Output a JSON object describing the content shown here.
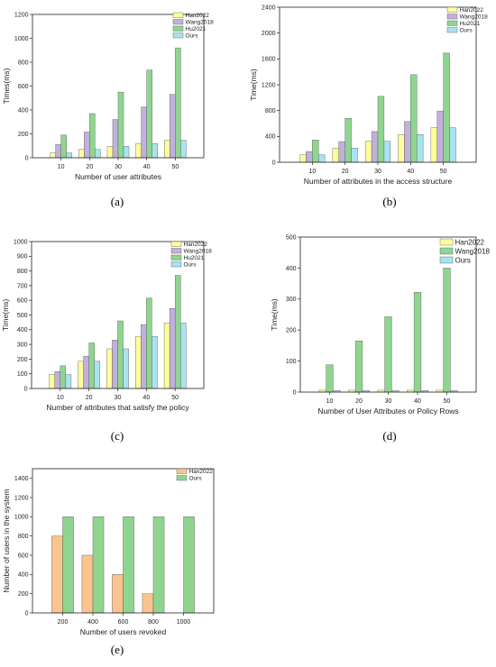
{
  "colors": {
    "han": "#ffff99",
    "wang": "#c2b0dc",
    "hu": "#8fd58f",
    "ours": "#a9e3ef",
    "e_han": "#fbc48f",
    "e_ours": "#8fd58f"
  },
  "chart_data": [
    {
      "id": "a",
      "caption": "(a)",
      "type": "bar",
      "ylabel": "Times(ms)",
      "xlabel": "Number of user attributes",
      "categories": [
        "10",
        "20",
        "30",
        "40",
        "50"
      ],
      "ylim": [
        0,
        1200
      ],
      "yticks": [
        0,
        200,
        400,
        600,
        800,
        1000,
        1200
      ],
      "legend": "top-right",
      "series": [
        {
          "name": "Han2022",
          "color_key": "han",
          "values": [
            40,
            70,
            95,
            120,
            145
          ]
        },
        {
          "name": "Wang2018",
          "color_key": "wang",
          "values": [
            110,
            215,
            320,
            425,
            530
          ]
        },
        {
          "name": "Hu2021",
          "color_key": "hu",
          "values": [
            190,
            370,
            550,
            735,
            920
          ]
        },
        {
          "name": "Ours",
          "color_key": "ours",
          "values": [
            40,
            70,
            95,
            120,
            145
          ]
        }
      ]
    },
    {
      "id": "b",
      "caption": "(b)",
      "type": "bar",
      "ylabel": "Time(ms)",
      "xlabel": "Number of attributes in the access structure",
      "categories": [
        "10",
        "20",
        "30",
        "40",
        "50"
      ],
      "ylim": [
        0,
        2400
      ],
      "yticks": [
        0,
        400,
        800,
        1200,
        1600,
        2000,
        2400
      ],
      "legend": "top-right",
      "series": [
        {
          "name": "Han2022",
          "color_key": "han",
          "values": [
            115,
            220,
            325,
            430,
            535
          ]
        },
        {
          "name": "Wang2018",
          "color_key": "wang",
          "values": [
            165,
            320,
            475,
            630,
            790
          ]
        },
        {
          "name": "Hu2021",
          "color_key": "hu",
          "values": [
            345,
            680,
            1020,
            1355,
            1690
          ]
        },
        {
          "name": "Ours",
          "color_key": "ours",
          "values": [
            115,
            220,
            325,
            430,
            535
          ]
        }
      ]
    },
    {
      "id": "c",
      "caption": "(c)",
      "type": "bar",
      "ylabel": "Time(ms)",
      "xlabel": "Number of attributes that satisfy the policy",
      "categories": [
        "10",
        "20",
        "30",
        "40",
        "50"
      ],
      "ylim": [
        0,
        1000
      ],
      "yticks": [
        0,
        100,
        200,
        300,
        400,
        500,
        600,
        700,
        800,
        900,
        1000
      ],
      "legend": "top-right",
      "series": [
        {
          "name": "Han2022",
          "color_key": "han",
          "values": [
            95,
            185,
            270,
            355,
            445
          ]
        },
        {
          "name": "Wang2018",
          "color_key": "wang",
          "values": [
            115,
            220,
            330,
            435,
            545
          ]
        },
        {
          "name": "Hu2021",
          "color_key": "hu",
          "values": [
            155,
            310,
            460,
            615,
            770
          ]
        },
        {
          "name": "Ours",
          "color_key": "ours",
          "values": [
            95,
            185,
            270,
            355,
            445
          ]
        }
      ]
    },
    {
      "id": "d",
      "caption": "(d)",
      "type": "bar",
      "ylabel": "Time(ms)",
      "xlabel": "Number of User Attributes or Policy Rows",
      "categories": [
        "10",
        "20",
        "30",
        "40",
        "50"
      ],
      "ylim": [
        0,
        500
      ],
      "yticks": [
        0,
        100,
        200,
        300,
        400,
        500
      ],
      "legend": "top-right",
      "series": [
        {
          "name": "Han2022",
          "color_key": "han",
          "values": [
            6,
            6,
            6,
            6,
            6
          ]
        },
        {
          "name": "Wang2018",
          "color_key": "hu",
          "values": [
            88,
            165,
            243,
            322,
            400
          ]
        },
        {
          "name": "Ours",
          "color_key": "ours",
          "values": [
            5,
            5,
            5,
            5,
            5
          ]
        }
      ]
    },
    {
      "id": "e",
      "caption": "(e)",
      "type": "bar",
      "ylabel": "Number of users in the system",
      "xlabel": "Number of users revoked",
      "categories": [
        "200",
        "400",
        "600",
        "800",
        "1000"
      ],
      "ylim": [
        0,
        1500
      ],
      "yticks": [
        0,
        200,
        400,
        600,
        800,
        1000,
        1200,
        1400
      ],
      "legend": "top-right",
      "series": [
        {
          "name": "Han2022",
          "color_key": "e_han",
          "values": [
            800,
            600,
            400,
            200,
            0
          ]
        },
        {
          "name": "Ours",
          "color_key": "e_ours",
          "values": [
            1000,
            1000,
            1000,
            1000,
            1000
          ]
        }
      ]
    }
  ]
}
